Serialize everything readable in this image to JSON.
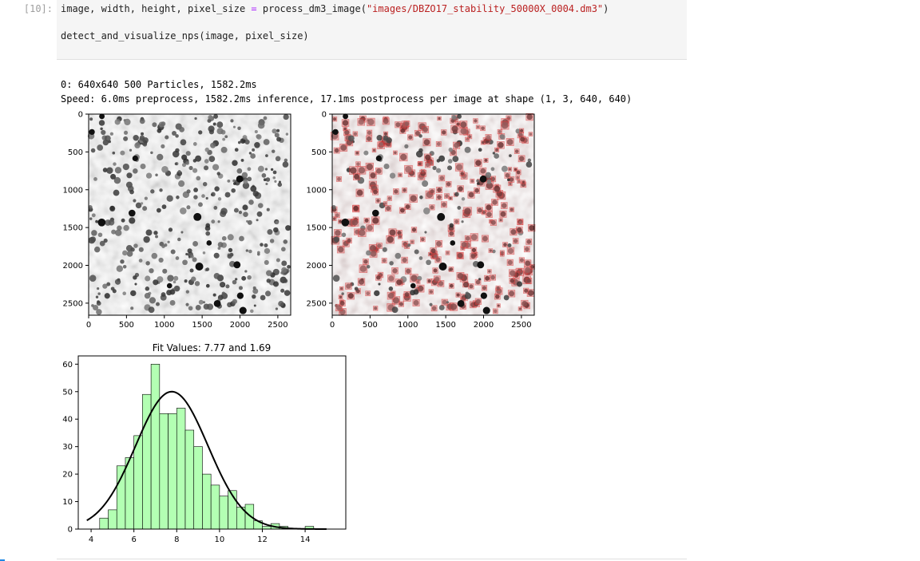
{
  "cell": {
    "prompt": "[10]:",
    "line1": {
      "lhs": "image, width, height, pixel_size ",
      "op": "=",
      "fn": " process_dm3_image(",
      "str": "\"images/DBZO17_stability_50000X_0004.dm3\"",
      "close": ")"
    },
    "line2": "detect_and_visualize_nps(image, pixel_size)"
  },
  "output": {
    "line1": "0: 640x640 500 Particles, 1582.2ms",
    "line2": "Speed: 6.0ms preprocess, 1582.2ms inference, 17.1ms postprocess per image at shape (1, 3, 640, 640)"
  },
  "image_panels": {
    "x_ticks": [
      "0",
      "500",
      "1000",
      "1500",
      "2000",
      "2500"
    ],
    "y_ticks": [
      "0",
      "500",
      "1000",
      "1500",
      "2000",
      "2500"
    ],
    "left_caption": "",
    "right_caption": ""
  },
  "chart_data": {
    "type": "bar",
    "title": "Fit Values: 7.77 and 1.69",
    "xlabel": "",
    "ylabel": "",
    "xlim": [
      3.4,
      15.9
    ],
    "ylim": [
      0,
      63
    ],
    "x_ticks": [
      4,
      6,
      8,
      10,
      12,
      14
    ],
    "y_ticks": [
      0,
      10,
      20,
      30,
      40,
      50,
      60
    ],
    "bar_color": "#b3ffb3",
    "edge_color": "#000000",
    "bin_width": 0.4,
    "bins": [
      {
        "x0": 4.4,
        "count": 4
      },
      {
        "x0": 4.8,
        "count": 7
      },
      {
        "x0": 5.2,
        "count": 23
      },
      {
        "x0": 5.6,
        "count": 26
      },
      {
        "x0": 6.0,
        "count": 34
      },
      {
        "x0": 6.4,
        "count": 49
      },
      {
        "x0": 6.8,
        "count": 60
      },
      {
        "x0": 7.2,
        "count": 42
      },
      {
        "x0": 7.6,
        "count": 42
      },
      {
        "x0": 8.0,
        "count": 44
      },
      {
        "x0": 8.4,
        "count": 36
      },
      {
        "x0": 8.8,
        "count": 30
      },
      {
        "x0": 9.2,
        "count": 20
      },
      {
        "x0": 9.6,
        "count": 16
      },
      {
        "x0": 10.0,
        "count": 12
      },
      {
        "x0": 10.4,
        "count": 14
      },
      {
        "x0": 10.8,
        "count": 8
      },
      {
        "x0": 11.2,
        "count": 9
      },
      {
        "x0": 11.6,
        "count": 3
      },
      {
        "x0": 12.0,
        "count": 1
      },
      {
        "x0": 12.4,
        "count": 2
      },
      {
        "x0": 12.8,
        "count": 1
      },
      {
        "x0": 13.2,
        "count": 0
      },
      {
        "x0": 13.6,
        "count": 0
      },
      {
        "x0": 14.0,
        "count": 1
      }
    ],
    "fit_curve": {
      "type": "normal",
      "mean": 7.77,
      "sd": 1.69,
      "peak": 50,
      "x_range": [
        3.8,
        15.0
      ],
      "color": "#000000"
    }
  }
}
